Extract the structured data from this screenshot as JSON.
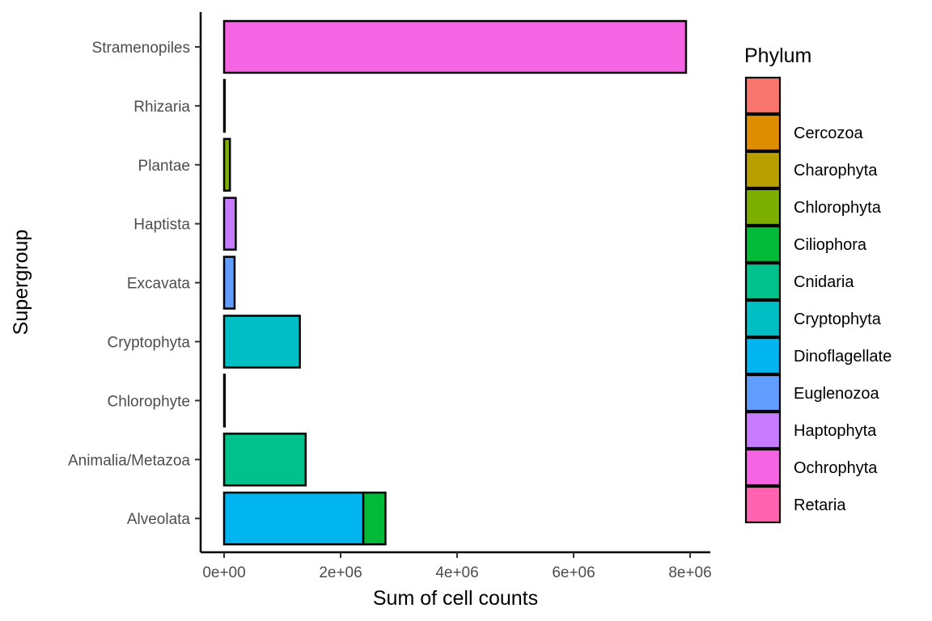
{
  "chart_data": {
    "type": "bar",
    "orientation": "horizontal",
    "stacked": true,
    "xlabel": "Sum of cell counts",
    "ylabel": "Supergroup",
    "xlim": [
      0,
      8000000
    ],
    "x_ticks": [
      {
        "value": 0,
        "label": "0e+00"
      },
      {
        "value": 2000000,
        "label": "2e+06"
      },
      {
        "value": 4000000,
        "label": "4e+06"
      },
      {
        "value": 6000000,
        "label": "6e+06"
      },
      {
        "value": 8000000,
        "label": "8e+06"
      }
    ],
    "categories": [
      "Stramenopiles",
      "Rhizaria",
      "Plantae",
      "Haptista",
      "Excavata",
      "Cryptophyta",
      "Chlorophyte",
      "Animalia/Metazoa",
      "Alveolata"
    ],
    "bars": [
      {
        "category": "Stramenopiles",
        "segments": [
          {
            "phylum": "Ochrophyta",
            "value": 7930000
          }
        ]
      },
      {
        "category": "Rhizaria",
        "segments": [
          {
            "phylum": "Cercozoa",
            "value": 8000
          }
        ]
      },
      {
        "category": "Plantae",
        "segments": [
          {
            "phylum": "Chlorophyta",
            "value": 100000
          }
        ]
      },
      {
        "category": "Haptista",
        "segments": [
          {
            "phylum": "Haptophyta",
            "value": 200000
          }
        ]
      },
      {
        "category": "Excavata",
        "segments": [
          {
            "phylum": "Euglenozoa",
            "value": 180000
          }
        ]
      },
      {
        "category": "Cryptophyta",
        "segments": [
          {
            "phylum": "Cryptophyta",
            "value": 1300000
          }
        ]
      },
      {
        "category": "Chlorophyte",
        "segments": [
          {
            "phylum": "Chlorophyta",
            "value": 3000
          }
        ]
      },
      {
        "category": "Animalia/Metazoa",
        "segments": [
          {
            "phylum": "Cnidaria",
            "value": 1400000
          }
        ]
      },
      {
        "category": "Alveolata",
        "segments": [
          {
            "phylum": "Dinoflagellate",
            "value": 2390000
          },
          {
            "phylum": "Ciliophora",
            "value": 380000
          }
        ]
      }
    ],
    "legend": {
      "title": "Phylum",
      "position": "right",
      "entries": [
        {
          "label": "",
          "color": "#F8766D"
        },
        {
          "label": "Cercozoa",
          "color": "#DE8C00"
        },
        {
          "label": "Charophyta",
          "color": "#B79F00"
        },
        {
          "label": "Chlorophyta",
          "color": "#7CAE00"
        },
        {
          "label": "Ciliophora",
          "color": "#00BA38"
        },
        {
          "label": "Cnidaria",
          "color": "#00C08B"
        },
        {
          "label": "Cryptophyta",
          "color": "#00BFC4"
        },
        {
          "label": "Dinoflagellate",
          "color": "#00B4F0"
        },
        {
          "label": "Euglenozoa",
          "color": "#619CFF"
        },
        {
          "label": "Haptophyta",
          "color": "#C77CFF"
        },
        {
          "label": "Ochrophyta",
          "color": "#F564E3"
        },
        {
          "label": "Retaria",
          "color": "#FF64B0"
        }
      ]
    },
    "grid": false
  }
}
